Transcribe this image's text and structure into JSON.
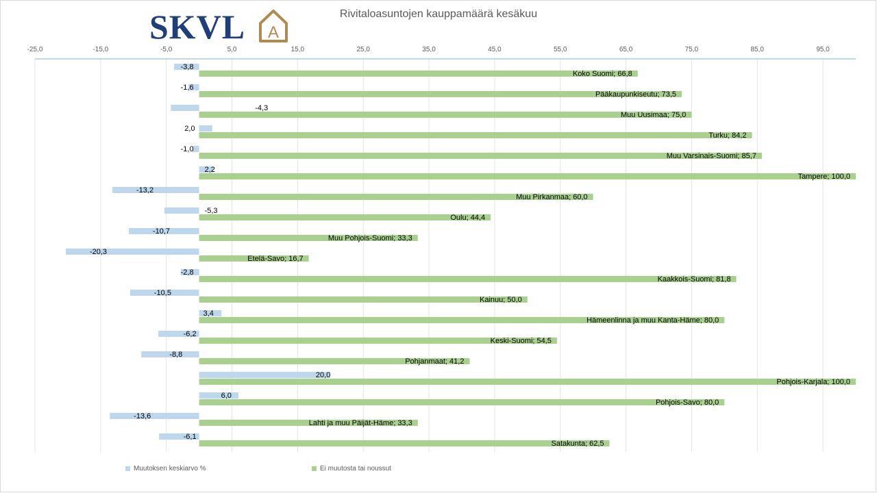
{
  "title": "Rivitaloasuntojen kauppamäärä kesäkuu",
  "logo": {
    "text": "SKVL",
    "mark_letter": "A",
    "text_color": "#1f3f7a",
    "mark_color": "#b08b4f"
  },
  "chart_data": {
    "type": "bar",
    "orientation": "horizontal",
    "title": "Rivitaloasuntojen kauppamäärä kesäkuu",
    "xlim": [
      -25,
      100
    ],
    "ticks": [
      -25,
      -15,
      -5,
      5,
      15,
      25,
      35,
      45,
      55,
      65,
      75,
      85,
      95
    ],
    "tick_labels": [
      "-25,0",
      "-15,0",
      "-5,0",
      "5,0",
      "15,0",
      "25,0",
      "35,0",
      "45,0",
      "55,0",
      "65,0",
      "75,0",
      "85,0",
      "95,0"
    ],
    "axis_position": "top",
    "grid": true,
    "legend_position": "bottom-left",
    "categories": [
      "Koko Suomi",
      "Pääkaupunkiseutu",
      "Muu Uusimaa",
      "Turku",
      "Muu Varsinais-Suomi",
      "Tampere",
      "Muu Pirkanmaa",
      "Oulu",
      "Muu Pohjois-Suomi",
      "Etelä-Savo",
      "Kaakkois-Suomi",
      "Kainuu",
      "Hämeenlinna ja muu Kanta-Häme",
      "Keski-Suomi",
      "Pohjanmaat",
      "Pohjois-Karjala",
      "Pohjois-Savo",
      "Lahti ja muu Päijät-Häme",
      "Satakunta"
    ],
    "series": [
      {
        "name": "Muutoksen keskiarvo %",
        "color": "#bdd7ee",
        "values": [
          -3.8,
          -1.6,
          -4.3,
          2.0,
          -1.0,
          2.2,
          -13.2,
          -5.3,
          -10.7,
          -20.3,
          -2.8,
          -10.5,
          3.4,
          -6.2,
          -8.8,
          20.0,
          6.0,
          -13.6,
          -6.1
        ],
        "data_labels": [
          "-3,8",
          "-1,6",
          "-4,3",
          "2,0",
          "-1,0",
          "2,2",
          "-13,2",
          "-5,3",
          "-10,7",
          "-20,3",
          "-2,8",
          "-10,5",
          "3,4",
          "-6,2",
          "-8,8",
          "20,0",
          "6,0",
          "-13,6",
          "-6,1"
        ]
      },
      {
        "name": "Ei muutosta tai noussut",
        "color": "#a9d18e",
        "values": [
          66.8,
          73.5,
          75.0,
          84.2,
          85.7,
          100.0,
          60.0,
          44.4,
          33.3,
          16.7,
          81.8,
          50.0,
          80.0,
          54.5,
          41.2,
          100.0,
          80.0,
          33.3,
          62.5
        ],
        "data_labels": [
          "Koko Suomi; 66,8",
          "Pääkaupunkiseutu; 73,5",
          "Muu Uusimaa; 75,0",
          "Turku; 84,2",
          "Muu Varsinais-Suomi; 85,7",
          "Tampere;  100,0",
          "Muu Pirkanmaa; 60,0",
          "Oulu; 44,4",
          "Muu Pohjois-Suomi; 33,3",
          "Etelä-Savo; 16,7",
          "Kaakkois-Suomi; 81,8",
          "Kainuu; 50,0",
          "Hämeenlinna ja muu Kanta-Häme; 80,0",
          "Keski-Suomi; 54,5",
          "Pohjanmaat; 41,2",
          "Pohjois-Karjala; 100,0",
          "Pohjois-Savo; 80,0",
          "Lahti ja muu Päijät-Häme; 33,3",
          "Satakunta; 62,5"
        ]
      }
    ]
  }
}
